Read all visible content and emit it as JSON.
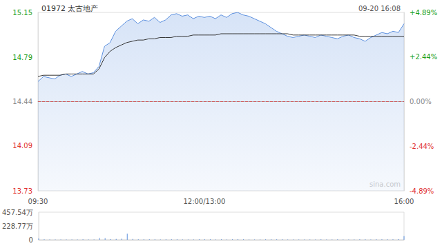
{
  "chart_data": [
    {
      "type": "line",
      "title": "01972 太古地产",
      "subtitle": "09-20 16:08",
      "annotation": "sina.com",
      "categories": [
        "09:30",
        null,
        null,
        null,
        null,
        null,
        null,
        null,
        null,
        null,
        null,
        null,
        null,
        null,
        null,
        null,
        null,
        null,
        null,
        null,
        null,
        null,
        null,
        null,
        null,
        null,
        null,
        null,
        null,
        null,
        "12:00/13:00",
        null,
        null,
        null,
        null,
        null,
        null,
        null,
        null,
        null,
        null,
        null,
        null,
        null,
        null,
        null,
        null,
        null,
        null,
        null,
        null,
        null,
        null,
        null,
        null,
        null,
        null,
        null,
        null,
        null,
        null,
        null,
        null,
        null,
        null,
        null,
        "16:00"
      ],
      "series": [
        {
          "color": "#5b8fde",
          "values": [
            14.6,
            14.64,
            14.63,
            14.62,
            14.65,
            14.66,
            14.64,
            14.66,
            14.68,
            14.66,
            14.67,
            14.72,
            14.88,
            14.91,
            15.0,
            15.04,
            15.08,
            15.1,
            15.06,
            15.09,
            15.08,
            15.11,
            15.07,
            15.09,
            15.13,
            15.14,
            15.12,
            15.13,
            15.1,
            15.12,
            15.11,
            15.12,
            15.1,
            15.13,
            15.11,
            15.14,
            15.15,
            15.13,
            15.12,
            15.1,
            15.08,
            15.06,
            15.03,
            15.0,
            14.98,
            14.96,
            14.95,
            14.96,
            14.97,
            14.96,
            14.95,
            14.97,
            14.96,
            14.95,
            14.94,
            14.96,
            14.97,
            14.95,
            14.94,
            14.92,
            14.95,
            14.97,
            14.99,
            14.98,
            15.0,
            14.99,
            15.06
          ]
        },
        {
          "color": "#333333",
          "values": [
            14.64,
            14.65,
            14.65,
            14.65,
            14.65,
            14.66,
            14.66,
            14.66,
            14.66,
            14.66,
            14.66,
            14.7,
            14.79,
            14.84,
            14.87,
            14.89,
            14.91,
            14.92,
            14.93,
            14.93,
            14.94,
            14.94,
            14.95,
            14.95,
            14.95,
            14.96,
            14.96,
            14.96,
            14.97,
            14.97,
            14.97,
            14.97,
            14.97,
            14.98,
            14.98,
            14.98,
            14.98,
            14.98,
            14.98,
            14.98,
            14.98,
            14.98,
            14.98,
            14.98,
            14.98,
            14.98,
            14.97,
            14.97,
            14.97,
            14.97,
            14.97,
            14.97,
            14.97,
            14.97,
            14.97,
            14.97,
            14.97,
            14.97,
            14.96,
            14.96,
            14.96,
            14.96,
            14.96,
            14.96,
            14.96,
            14.96,
            14.96
          ]
        }
      ],
      "ylim": [
        13.73,
        15.15
      ],
      "yticks": [
        13.73,
        14.09,
        14.44,
        14.79,
        15.15
      ],
      "y2lim": [
        -4.89,
        4.89
      ],
      "y2ticks": [
        {
          "value": -4.89,
          "label": "-4.89%"
        },
        {
          "value": -2.44,
          "label": "-2.44%"
        },
        {
          "value": 0,
          "label": "0.00%"
        },
        {
          "value": 2.44,
          "label": "+2.44%"
        },
        {
          "value": 4.89,
          "label": "+4.89%"
        }
      ],
      "grid": false
    },
    {
      "type": "bar",
      "categories": [
        "09:30",
        null,
        null,
        null,
        null,
        null,
        null,
        null,
        null,
        null,
        null,
        null,
        null,
        null,
        null,
        null,
        null,
        null,
        null,
        null,
        null,
        null,
        null,
        null,
        null,
        null,
        null,
        null,
        null,
        null,
        "12:00/13:00",
        null,
        null,
        null,
        null,
        null,
        null,
        null,
        null,
        null,
        null,
        null,
        null,
        null,
        null,
        null,
        null,
        null,
        null,
        null,
        null,
        null,
        null,
        null,
        null,
        null,
        null,
        null,
        null,
        null,
        null,
        null,
        null,
        null,
        null,
        null,
        "16:00"
      ],
      "values": [
        20,
        8,
        6,
        5,
        7,
        5,
        6,
        5,
        8,
        6,
        7,
        30,
        25,
        12,
        15,
        18,
        100,
        14,
        10,
        9,
        8,
        10,
        7,
        8,
        9,
        8,
        7,
        6,
        7,
        8,
        10,
        9,
        7,
        8,
        6,
        9,
        12,
        8,
        7,
        6,
        7,
        8,
        9,
        10,
        8,
        7,
        6,
        7,
        6,
        7,
        6,
        8,
        6,
        7,
        8,
        6,
        7,
        6,
        8,
        9,
        7,
        8,
        9,
        8,
        10,
        12,
        60
      ],
      "color": "#5b8fde",
      "ylim": [
        0,
        457.54
      ],
      "yticks": [
        0,
        {
          "value": 228.77,
          "label": "228.77万"
        },
        {
          "value": 457.54,
          "label": "457.54万"
        }
      ],
      "tick_labels": "y",
      "grid": false
    }
  ]
}
